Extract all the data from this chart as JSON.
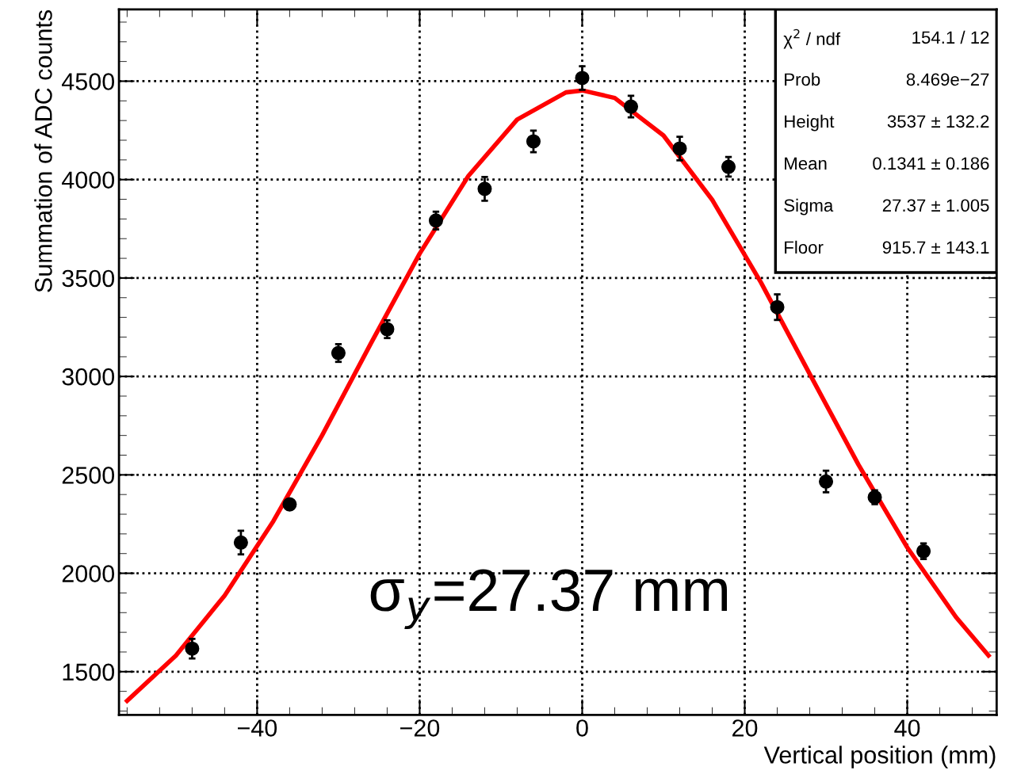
{
  "chart_data": {
    "type": "scatter",
    "xlabel": "Vertical position (mm)",
    "ylabel": "Summation of ADC counts",
    "xlim": [
      -57,
      51
    ],
    "ylim": [
      1280,
      4865
    ],
    "xticks": [
      {
        "value": -40,
        "label": "−40"
      },
      {
        "value": -20,
        "label": "−20"
      },
      0,
      20,
      40
    ],
    "yticks": [
      1500,
      2000,
      2500,
      3000,
      3500,
      4000,
      4500
    ],
    "grid": true,
    "legend": false,
    "series": [
      {
        "color": "#000000",
        "marker": "circle",
        "x": [
          -48,
          -42,
          -36,
          -30,
          -24,
          -18,
          -12,
          -6,
          0,
          6,
          12,
          18,
          24,
          30,
          36,
          42
        ],
        "values": [
          1617,
          2156,
          2350,
          3119,
          3240,
          3792,
          3953,
          4194,
          4516,
          4371,
          4158,
          4065,
          3352,
          2466,
          2386,
          2112
        ],
        "errors": [
          50,
          60,
          25,
          45,
          45,
          45,
          60,
          55,
          60,
          55,
          60,
          50,
          65,
          55,
          35,
          40
        ]
      },
      {
        "type": "line",
        "color": "#ff0000",
        "line_style": "solid",
        "x": [
          -56,
          -50,
          -44,
          -38,
          -32,
          -26,
          -20,
          -14,
          -8,
          -2,
          0,
          4,
          10,
          16,
          22,
          28,
          34,
          40,
          46,
          50
        ],
        "values": [
          1352,
          1582,
          1887,
          2265,
          2701,
          3168,
          3624,
          4019,
          4305,
          4443,
          4453,
          4415,
          4224,
          3897,
          3477,
          3012,
          2551,
          2131,
          1777,
          1582
        ]
      }
    ],
    "annotations": [
      "χ$^{2}$ / ndf",
      "154.1 / 12",
      "Prob",
      "8.469e−27",
      "Height",
      "3537 ± 132.2",
      "Mean",
      "0.1341 ± 0.186",
      "Sigma",
      "27.37 ± 1.005",
      "Floor",
      "915.7 ± 143.1",
      "σ$_{y}$=27.37 mm"
    ]
  }
}
